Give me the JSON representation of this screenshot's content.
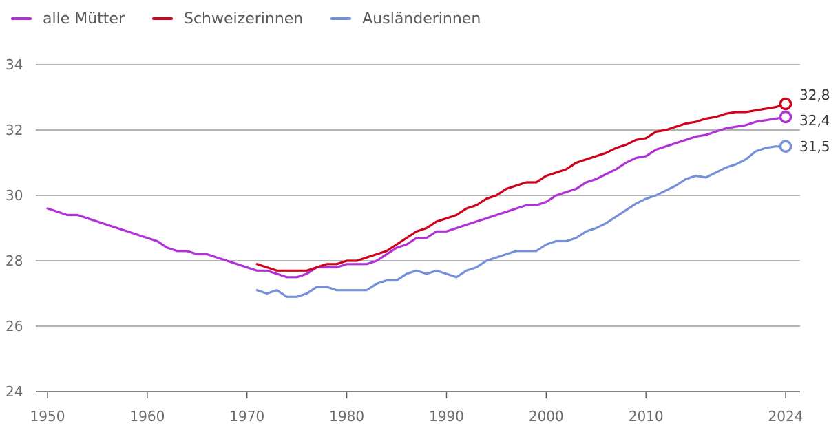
{
  "chart_data": {
    "type": "line",
    "x_ticks": [
      1950,
      1960,
      1970,
      1980,
      1990,
      2000,
      2010,
      2024
    ],
    "y_ticks": [
      24,
      26,
      28,
      30,
      32,
      34
    ],
    "xlim": [
      1950,
      2024
    ],
    "ylim": [
      24,
      34
    ],
    "grid": true,
    "legend_position": "top-left",
    "series": [
      {
        "name": "alle Mütter",
        "color": "#b032d6",
        "points": [
          [
            1950,
            29.6
          ],
          [
            1952,
            29.4
          ],
          [
            1953,
            29.4
          ],
          [
            1961,
            28.6
          ],
          [
            1962,
            28.4
          ],
          [
            1963,
            28.3
          ],
          [
            1964,
            28.3
          ],
          [
            1965,
            28.2
          ],
          [
            1966,
            28.2
          ],
          [
            1971,
            27.7
          ],
          [
            1972,
            27.7
          ],
          [
            1973,
            27.6
          ],
          [
            1974,
            27.5
          ],
          [
            1975,
            27.5
          ],
          [
            1976,
            27.6
          ],
          [
            1977,
            27.8
          ],
          [
            1978,
            27.8
          ],
          [
            1979,
            27.8
          ],
          [
            1980,
            27.9
          ],
          [
            1981,
            27.9
          ],
          [
            1982,
            27.9
          ],
          [
            1983,
            28.0
          ],
          [
            1984,
            28.2
          ],
          [
            1985,
            28.4
          ],
          [
            1986,
            28.5
          ],
          [
            1987,
            28.7
          ],
          [
            1988,
            28.7
          ],
          [
            1989,
            28.9
          ],
          [
            1990,
            28.9
          ],
          [
            1991,
            29.0
          ],
          [
            1992,
            29.1
          ],
          [
            1993,
            29.2
          ],
          [
            1994,
            29.3
          ],
          [
            1995,
            29.4
          ],
          [
            1996,
            29.5
          ],
          [
            1997,
            29.6
          ],
          [
            1998,
            29.7
          ],
          [
            1999,
            29.7
          ],
          [
            2000,
            29.8
          ],
          [
            2001,
            30.0
          ],
          [
            2002,
            30.1
          ],
          [
            2003,
            30.2
          ],
          [
            2004,
            30.4
          ],
          [
            2005,
            30.5
          ],
          [
            2006,
            30.65
          ],
          [
            2007,
            30.8
          ],
          [
            2008,
            31.0
          ],
          [
            2009,
            31.15
          ],
          [
            2010,
            31.2
          ],
          [
            2011,
            31.4
          ],
          [
            2012,
            31.5
          ],
          [
            2013,
            31.6
          ],
          [
            2014,
            31.7
          ],
          [
            2015,
            31.8
          ],
          [
            2016,
            31.85
          ],
          [
            2017,
            31.95
          ],
          [
            2018,
            32.05
          ],
          [
            2019,
            32.1
          ],
          [
            2020,
            32.15
          ],
          [
            2021,
            32.25
          ],
          [
            2022,
            32.3
          ],
          [
            2023,
            32.35
          ],
          [
            2024,
            32.4
          ]
        ],
        "end_label": "32,4"
      },
      {
        "name": "Schweizerinnen",
        "color": "#d0021b",
        "points": [
          [
            1971,
            27.9
          ],
          [
            1972,
            27.8
          ],
          [
            1973,
            27.7
          ],
          [
            1974,
            27.7
          ],
          [
            1975,
            27.7
          ],
          [
            1976,
            27.7
          ],
          [
            1977,
            27.8
          ],
          [
            1978,
            27.9
          ],
          [
            1979,
            27.9
          ],
          [
            1980,
            28.0
          ],
          [
            1981,
            28.0
          ],
          [
            1982,
            28.1
          ],
          [
            1983,
            28.2
          ],
          [
            1984,
            28.3
          ],
          [
            1985,
            28.5
          ],
          [
            1986,
            28.7
          ],
          [
            1987,
            28.9
          ],
          [
            1988,
            29.0
          ],
          [
            1989,
            29.2
          ],
          [
            1990,
            29.3
          ],
          [
            1991,
            29.4
          ],
          [
            1992,
            29.6
          ],
          [
            1993,
            29.7
          ],
          [
            1994,
            29.9
          ],
          [
            1995,
            30.0
          ],
          [
            1996,
            30.2
          ],
          [
            1997,
            30.3
          ],
          [
            1998,
            30.4
          ],
          [
            1999,
            30.4
          ],
          [
            2000,
            30.6
          ],
          [
            2001,
            30.7
          ],
          [
            2002,
            30.8
          ],
          [
            2003,
            31.0
          ],
          [
            2004,
            31.1
          ],
          [
            2005,
            31.2
          ],
          [
            2006,
            31.3
          ],
          [
            2007,
            31.45
          ],
          [
            2008,
            31.55
          ],
          [
            2009,
            31.7
          ],
          [
            2010,
            31.75
          ],
          [
            2011,
            31.95
          ],
          [
            2012,
            32.0
          ],
          [
            2013,
            32.1
          ],
          [
            2014,
            32.2
          ],
          [
            2015,
            32.25
          ],
          [
            2016,
            32.35
          ],
          [
            2017,
            32.4
          ],
          [
            2018,
            32.5
          ],
          [
            2019,
            32.55
          ],
          [
            2020,
            32.55
          ],
          [
            2021,
            32.6
          ],
          [
            2022,
            32.65
          ],
          [
            2023,
            32.7
          ],
          [
            2024,
            32.8
          ]
        ],
        "end_label": "32,8"
      },
      {
        "name": "Ausländerinnen",
        "color": "#7490d8",
        "points": [
          [
            1971,
            27.1
          ],
          [
            1972,
            27.0
          ],
          [
            1973,
            27.1
          ],
          [
            1974,
            26.9
          ],
          [
            1975,
            26.9
          ],
          [
            1976,
            27.0
          ],
          [
            1977,
            27.2
          ],
          [
            1978,
            27.2
          ],
          [
            1979,
            27.1
          ],
          [
            1980,
            27.1
          ],
          [
            1981,
            27.1
          ],
          [
            1982,
            27.1
          ],
          [
            1983,
            27.3
          ],
          [
            1984,
            27.4
          ],
          [
            1985,
            27.4
          ],
          [
            1986,
            27.6
          ],
          [
            1987,
            27.7
          ],
          [
            1988,
            27.6
          ],
          [
            1989,
            27.7
          ],
          [
            1990,
            27.6
          ],
          [
            1991,
            27.5
          ],
          [
            1992,
            27.7
          ],
          [
            1993,
            27.8
          ],
          [
            1994,
            28.0
          ],
          [
            1995,
            28.1
          ],
          [
            1996,
            28.2
          ],
          [
            1997,
            28.3
          ],
          [
            1998,
            28.3
          ],
          [
            1999,
            28.3
          ],
          [
            2000,
            28.5
          ],
          [
            2001,
            28.6
          ],
          [
            2002,
            28.6
          ],
          [
            2003,
            28.7
          ],
          [
            2004,
            28.9
          ],
          [
            2005,
            29.0
          ],
          [
            2006,
            29.15
          ],
          [
            2007,
            29.35
          ],
          [
            2008,
            29.55
          ],
          [
            2009,
            29.75
          ],
          [
            2010,
            29.9
          ],
          [
            2011,
            30.0
          ],
          [
            2012,
            30.15
          ],
          [
            2013,
            30.3
          ],
          [
            2014,
            30.5
          ],
          [
            2015,
            30.6
          ],
          [
            2016,
            30.55
          ],
          [
            2017,
            30.7
          ],
          [
            2018,
            30.85
          ],
          [
            2019,
            30.95
          ],
          [
            2020,
            31.1
          ],
          [
            2021,
            31.35
          ],
          [
            2022,
            31.45
          ],
          [
            2023,
            31.5
          ],
          [
            2024,
            31.5
          ]
        ],
        "end_label": "31,5"
      }
    ]
  }
}
